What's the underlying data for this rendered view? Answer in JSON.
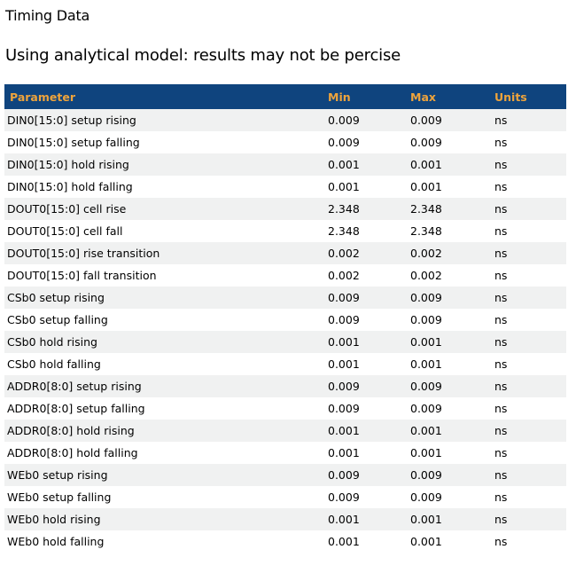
{
  "page": {
    "title": "Timing Data",
    "subtitle": "Using analytical model: results may not be percise"
  },
  "colors": {
    "header_bg": "#0f447e",
    "header_text": "#eea43c",
    "row_alt_bg": "#f0f1f1",
    "text_color": "#000000"
  },
  "table": {
    "columns": [
      "Parameter",
      "Min",
      "Max",
      "Units"
    ],
    "rows": [
      {
        "parameter": "DIN0[15:0] setup rising",
        "min": "0.009",
        "max": "0.009",
        "units": "ns"
      },
      {
        "parameter": "DIN0[15:0] setup falling",
        "min": "0.009",
        "max": "0.009",
        "units": "ns"
      },
      {
        "parameter": "DIN0[15:0] hold rising",
        "min": "0.001",
        "max": "0.001",
        "units": "ns"
      },
      {
        "parameter": "DIN0[15:0] hold falling",
        "min": "0.001",
        "max": "0.001",
        "units": "ns"
      },
      {
        "parameter": "DOUT0[15:0] cell rise",
        "min": "2.348",
        "max": "2.348",
        "units": "ns"
      },
      {
        "parameter": "DOUT0[15:0] cell fall",
        "min": "2.348",
        "max": "2.348",
        "units": "ns"
      },
      {
        "parameter": "DOUT0[15:0] rise transition",
        "min": "0.002",
        "max": "0.002",
        "units": "ns"
      },
      {
        "parameter": "DOUT0[15:0] fall transition",
        "min": "0.002",
        "max": "0.002",
        "units": "ns"
      },
      {
        "parameter": "CSb0 setup rising",
        "min": "0.009",
        "max": "0.009",
        "units": "ns"
      },
      {
        "parameter": "CSb0 setup falling",
        "min": "0.009",
        "max": "0.009",
        "units": "ns"
      },
      {
        "parameter": "CSb0 hold rising",
        "min": "0.001",
        "max": "0.001",
        "units": "ns"
      },
      {
        "parameter": "CSb0 hold falling",
        "min": "0.001",
        "max": "0.001",
        "units": "ns"
      },
      {
        "parameter": "ADDR0[8:0] setup rising",
        "min": "0.009",
        "max": "0.009",
        "units": "ns"
      },
      {
        "parameter": "ADDR0[8:0] setup falling",
        "min": "0.009",
        "max": "0.009",
        "units": "ns"
      },
      {
        "parameter": "ADDR0[8:0] hold rising",
        "min": "0.001",
        "max": "0.001",
        "units": "ns"
      },
      {
        "parameter": "ADDR0[8:0] hold falling",
        "min": "0.001",
        "max": "0.001",
        "units": "ns"
      },
      {
        "parameter": "WEb0 setup rising",
        "min": "0.009",
        "max": "0.009",
        "units": "ns"
      },
      {
        "parameter": "WEb0 setup falling",
        "min": "0.009",
        "max": "0.009",
        "units": "ns"
      },
      {
        "parameter": "WEb0 hold rising",
        "min": "0.001",
        "max": "0.001",
        "units": "ns"
      },
      {
        "parameter": "WEb0 hold falling",
        "min": "0.001",
        "max": "0.001",
        "units": "ns"
      }
    ]
  }
}
